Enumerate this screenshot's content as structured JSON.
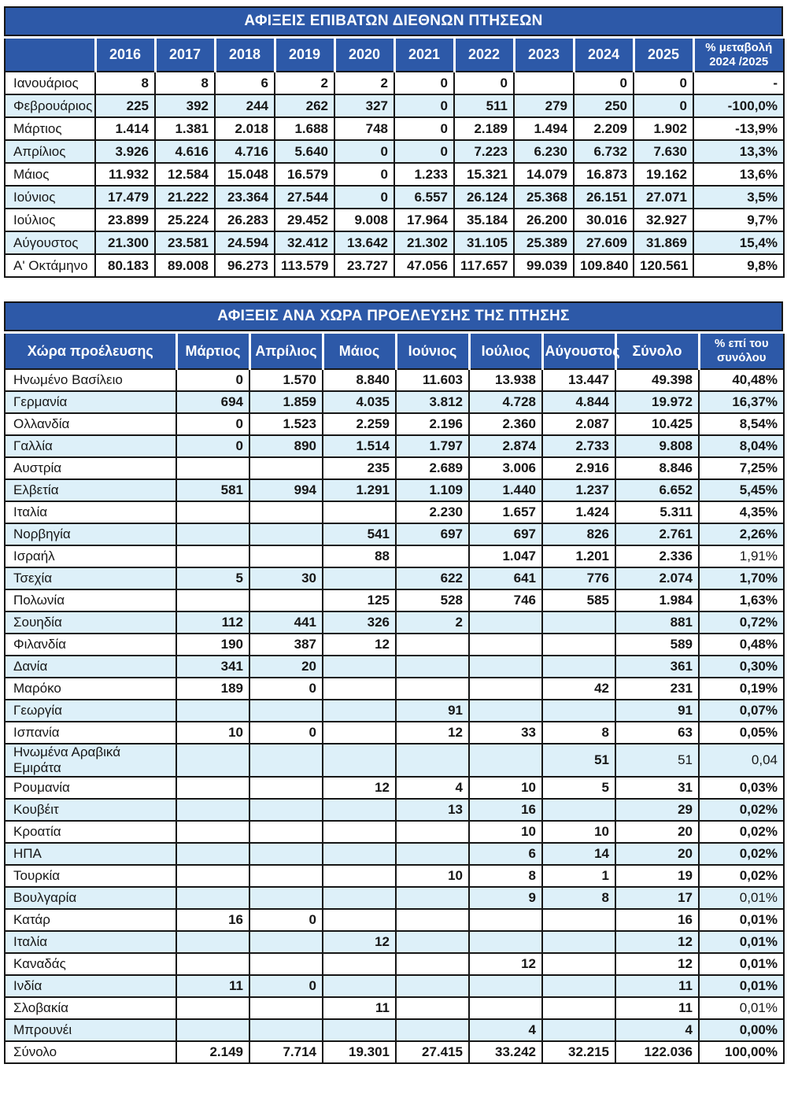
{
  "colors": {
    "header_blue": "#2d59a8",
    "row_alt_blue": "#ddf0f9",
    "border": "#161616",
    "header_text": "#ffffff",
    "body_text": "#161616"
  },
  "table1": {
    "title": "ΑΦΙΞΕΙΣ ΕΠΙΒΑΤΩΝ ΔΙΕΘΝΩΝ ΠΤΗΣΕΩΝ",
    "columns": [
      "",
      "2016",
      "2017",
      "2018",
      "2019",
      "2020",
      "2021",
      "2022",
      "2023",
      "2024",
      "2025",
      "% μεταβολή\n2024 /2025"
    ],
    "rows": [
      {
        "cells": [
          "Ιανουάριος",
          "8",
          "8",
          "6",
          "2",
          "2",
          "0",
          "0",
          "",
          "0",
          "0",
          "-"
        ]
      },
      {
        "cells": [
          "Φεβρουάριος",
          "225",
          "392",
          "244",
          "262",
          "327",
          "0",
          "511",
          "279",
          "250",
          "0",
          "-100,0%"
        ]
      },
      {
        "cells": [
          "Μάρτιος",
          "1.414",
          "1.381",
          "2.018",
          "1.688",
          "748",
          "0",
          "2.189",
          "1.494",
          "2.209",
          "1.902",
          "-13,9%"
        ]
      },
      {
        "cells": [
          "Απρίλιος",
          "3.926",
          "4.616",
          "4.716",
          "5.640",
          "0",
          "0",
          "7.223",
          "6.230",
          "6.732",
          "7.630",
          "13,3%"
        ]
      },
      {
        "cells": [
          "Μάιος",
          "11.932",
          "12.584",
          "15.048",
          "16.579",
          "0",
          "1.233",
          "15.321",
          "14.079",
          "16.873",
          "19.162",
          "13,6%"
        ]
      },
      {
        "cells": [
          "Ιούνιος",
          "17.479",
          "21.222",
          "23.364",
          "27.544",
          "0",
          "6.557",
          "26.124",
          "25.368",
          "26.151",
          "27.071",
          "3,5%"
        ]
      },
      {
        "cells": [
          "Ιούλιος",
          "23.899",
          "25.224",
          "26.283",
          "29.452",
          "9.008",
          "17.964",
          "35.184",
          "26.200",
          "30.016",
          "32.927",
          "9,7%"
        ]
      },
      {
        "cells": [
          "Αύγουστος",
          "21.300",
          "23.581",
          "24.594",
          "32.412",
          "13.642",
          "21.302",
          "31.105",
          "25.389",
          "27.609",
          "31.869",
          "15,4%"
        ]
      },
      {
        "cells": [
          "Α' Οκτάμηνο",
          "80.183",
          "89.008",
          "96.273",
          "113.579",
          "23.727",
          "47.056",
          "117.657",
          "99.039",
          "109.840",
          "120.561",
          "9,8%"
        ]
      }
    ]
  },
  "table2": {
    "title": "ΑΦΙΞΕΙΣ ΑΝΑ ΧΩΡΑ ΠΡΟΕΛΕΥΣΗΣ ΤΗΣ ΠΤΗΣΗΣ",
    "columns": [
      "Χώρα προέλευσης",
      "Μάρτιος",
      "Απρίλιος",
      "Μάιος",
      "Ιούνιος",
      "Ιούλιος",
      "Αύγουστος",
      "Σύνολο",
      "% επί του\nσυνόλου"
    ],
    "rows": [
      {
        "cells": [
          "Ηνωμένο Βασίλειο",
          "0",
          "1.570",
          "8.840",
          "11.603",
          "13.938",
          "13.447",
          "49.398",
          "40,48%"
        ]
      },
      {
        "cells": [
          "Γερμανία",
          "694",
          "1.859",
          "4.035",
          "3.812",
          "4.728",
          "4.844",
          "19.972",
          "16,37%"
        ]
      },
      {
        "cells": [
          "Ολλανδία",
          "0",
          "1.523",
          "2.259",
          "2.196",
          "2.360",
          "2.087",
          "10.425",
          "8,54%"
        ]
      },
      {
        "cells": [
          "Γαλλία",
          "0",
          "890",
          "1.514",
          "1.797",
          "2.874",
          "2.733",
          "9.808",
          "8,04%"
        ]
      },
      {
        "cells": [
          "Αυστρία",
          "",
          "",
          "235",
          "2.689",
          "3.006",
          "2.916",
          "8.846",
          "7,25%"
        ]
      },
      {
        "cells": [
          "Ελβετία",
          "581",
          "994",
          "1.291",
          "1.109",
          "1.440",
          "1.237",
          "6.652",
          "5,45%"
        ]
      },
      {
        "cells": [
          "Ιταλία",
          "",
          "",
          "",
          "2.230",
          "1.657",
          "1.424",
          "5.311",
          "4,35%"
        ]
      },
      {
        "cells": [
          "Νορβηγία",
          "",
          "",
          "541",
          "697",
          "697",
          "826",
          "2.761",
          "2,26%"
        ]
      },
      {
        "cells": [
          "Ισραήλ",
          "",
          "",
          "88",
          "",
          "1.047",
          "1.201",
          "2.336",
          "1,91%"
        ],
        "light_pct": true
      },
      {
        "cells": [
          "Τσεχία",
          "5",
          "30",
          "",
          "622",
          "641",
          "776",
          "2.074",
          "1,70%"
        ]
      },
      {
        "cells": [
          "Πολωνία",
          "",
          "",
          "125",
          "528",
          "746",
          "585",
          "1.984",
          "1,63%"
        ]
      },
      {
        "cells": [
          "Σουηδία",
          "112",
          "441",
          "326",
          "2",
          "",
          "",
          "881",
          "0,72%"
        ]
      },
      {
        "cells": [
          "Φιλανδία",
          "190",
          "387",
          "12",
          "",
          "",
          "",
          "589",
          "0,48%"
        ]
      },
      {
        "cells": [
          "Δανία",
          "341",
          "20",
          "",
          "",
          "",
          "",
          "361",
          "0,30%"
        ]
      },
      {
        "cells": [
          "Μαρόκο",
          "189",
          "0",
          "",
          "",
          "",
          "42",
          "231",
          "0,19%"
        ]
      },
      {
        "cells": [
          "Γεωργία",
          "",
          "",
          "",
          "91",
          "",
          "",
          "91",
          "0,07%"
        ]
      },
      {
        "cells": [
          "Ισπανία",
          "10",
          "0",
          "",
          "12",
          "33",
          "8",
          "63",
          "0,05%"
        ]
      },
      {
        "cells": [
          "Ηνωμένα Αραβικά Εμιράτα",
          "",
          "",
          "",
          "",
          "",
          "51",
          "51",
          "0,04"
        ],
        "light_pct": true,
        "light_total": true
      },
      {
        "cells": [
          "Ρουμανία",
          "",
          "",
          "12",
          "4",
          "10",
          "5",
          "31",
          "0,03%"
        ]
      },
      {
        "cells": [
          "Κουβέιτ",
          "",
          "",
          "",
          "13",
          "16",
          "",
          "29",
          "0,02%"
        ]
      },
      {
        "cells": [
          "Κροατία",
          "",
          "",
          "",
          "",
          "10",
          "10",
          "20",
          "0,02%"
        ]
      },
      {
        "cells": [
          "ΗΠΑ",
          "",
          "",
          "",
          "",
          "6",
          "14",
          "20",
          "0,02%"
        ]
      },
      {
        "cells": [
          "Τουρκία",
          "",
          "",
          "",
          "10",
          "8",
          "1",
          "19",
          "0,02%"
        ]
      },
      {
        "cells": [
          "Βουλγαρία",
          "",
          "",
          "",
          "",
          "9",
          "8",
          "17",
          "0,01%"
        ],
        "light_pct": true
      },
      {
        "cells": [
          "Κατάρ",
          "16",
          "0",
          "",
          "",
          "",
          "",
          "16",
          "0,01%"
        ]
      },
      {
        "cells": [
          "Ιταλία",
          "",
          "",
          "12",
          "",
          "",
          "",
          "12",
          "0,01%"
        ]
      },
      {
        "cells": [
          "Καναδάς",
          "",
          "",
          "",
          "",
          "12",
          "",
          "12",
          "0,01%"
        ]
      },
      {
        "cells": [
          "Ινδία",
          "11",
          "0",
          "",
          "",
          "",
          "",
          "11",
          "0,01%"
        ]
      },
      {
        "cells": [
          "Σλοβακία",
          "",
          "",
          "11",
          "",
          "",
          "",
          "11",
          "0,01%"
        ],
        "light_pct": true
      },
      {
        "cells": [
          "Μπρουνέι",
          "",
          "",
          "",
          "",
          "4",
          "",
          "4",
          "0,00%"
        ]
      },
      {
        "cells": [
          "Σύνολο",
          "2.149",
          "7.714",
          "19.301",
          "27.415",
          "33.242",
          "32.215",
          "122.036",
          "100,00%"
        ]
      }
    ]
  }
}
